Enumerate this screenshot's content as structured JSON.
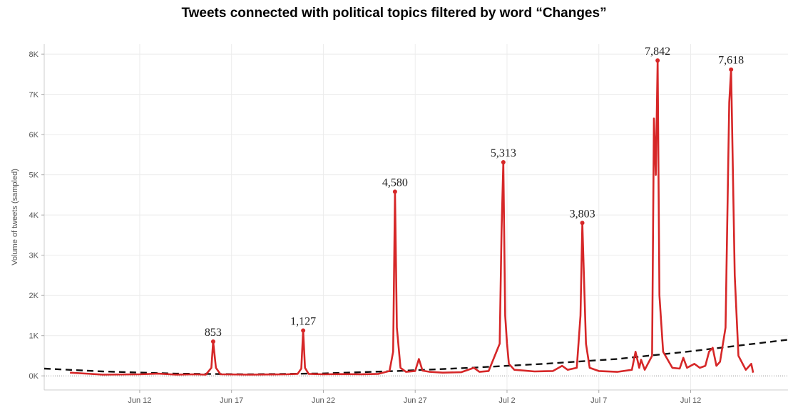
{
  "chart_data": {
    "type": "line",
    "title": "Tweets connected with political topics filtered by word “Changes”",
    "ylabel": "Volume of tweets (sampled)",
    "xlabel": "",
    "ylim": [
      -350,
      8250
    ],
    "yticks": [
      {
        "v": 0,
        "label": "0K"
      },
      {
        "v": 1000,
        "label": "1K"
      },
      {
        "v": 2000,
        "label": "2K"
      },
      {
        "v": 3000,
        "label": "3K"
      },
      {
        "v": 4000,
        "label": "4K"
      },
      {
        "v": 5000,
        "label": "5K"
      },
      {
        "v": 6000,
        "label": "6K"
      },
      {
        "v": 7000,
        "label": "7K"
      },
      {
        "v": 8000,
        "label": "8K"
      }
    ],
    "xrange_days": [
      -3.2,
      37.3
    ],
    "xticks": [
      {
        "day": 2,
        "label": "Jun 12"
      },
      {
        "day": 7,
        "label": "Jun 17"
      },
      {
        "day": 12,
        "label": "Jun 22"
      },
      {
        "day": 17,
        "label": "Jun 27"
      },
      {
        "day": 22,
        "label": "Jul 2"
      },
      {
        "day": 27,
        "label": "Jul 7"
      },
      {
        "day": 32,
        "label": "Jul 12"
      }
    ],
    "grid": true,
    "series": [
      {
        "color": "#d62728",
        "points": [
          [
            -1.8,
            80
          ],
          [
            0,
            30
          ],
          [
            2,
            40
          ],
          [
            3,
            55
          ],
          [
            4,
            30
          ],
          [
            5,
            40
          ],
          [
            5.6,
            30
          ],
          [
            5.9,
            200
          ],
          [
            6.0,
            853
          ],
          [
            6.15,
            200
          ],
          [
            6.4,
            40
          ],
          [
            8,
            30
          ],
          [
            9,
            35
          ],
          [
            10,
            40
          ],
          [
            10.6,
            50
          ],
          [
            10.8,
            180
          ],
          [
            10.9,
            1127
          ],
          [
            11.0,
            200
          ],
          [
            11.2,
            50
          ],
          [
            12,
            40
          ],
          [
            13,
            45
          ],
          [
            14,
            40
          ],
          [
            15,
            50
          ],
          [
            15.6,
            120
          ],
          [
            15.8,
            600
          ],
          [
            15.9,
            4580
          ],
          [
            16.0,
            1200
          ],
          [
            16.2,
            200
          ],
          [
            16.5,
            100
          ],
          [
            17,
            120
          ],
          [
            17.2,
            420
          ],
          [
            17.4,
            130
          ],
          [
            17.8,
            100
          ],
          [
            18.5,
            80
          ],
          [
            19.5,
            90
          ],
          [
            20.2,
            200
          ],
          [
            20.5,
            100
          ],
          [
            21,
            120
          ],
          [
            21.6,
            800
          ],
          [
            21.7,
            3600
          ],
          [
            21.8,
            5313
          ],
          [
            21.9,
            1500
          ],
          [
            22.0,
            800
          ],
          [
            22.1,
            300
          ],
          [
            22.4,
            150
          ],
          [
            23,
            130
          ],
          [
            23.5,
            110
          ],
          [
            24.5,
            120
          ],
          [
            25,
            250
          ],
          [
            25.3,
            150
          ],
          [
            25.8,
            200
          ],
          [
            26.0,
            1500
          ],
          [
            26.1,
            3803
          ],
          [
            26.3,
            800
          ],
          [
            26.5,
            200
          ],
          [
            27,
            120
          ],
          [
            28,
            100
          ],
          [
            28.8,
            150
          ],
          [
            29.0,
            600
          ],
          [
            29.2,
            200
          ],
          [
            29.3,
            400
          ],
          [
            29.5,
            150
          ],
          [
            29.9,
            500
          ],
          [
            30.0,
            6400
          ],
          [
            30.1,
            5000
          ],
          [
            30.2,
            7842
          ],
          [
            30.3,
            2000
          ],
          [
            30.5,
            600
          ],
          [
            31,
            200
          ],
          [
            31.4,
            180
          ],
          [
            31.6,
            450
          ],
          [
            31.8,
            200
          ],
          [
            32.2,
            300
          ],
          [
            32.5,
            200
          ],
          [
            32.8,
            250
          ],
          [
            33.0,
            600
          ],
          [
            33.2,
            700
          ],
          [
            33.4,
            250
          ],
          [
            33.6,
            350
          ],
          [
            33.9,
            1200
          ],
          [
            34.1,
            6800
          ],
          [
            34.2,
            7618
          ],
          [
            34.4,
            2500
          ],
          [
            34.6,
            500
          ],
          [
            35,
            150
          ],
          [
            35.3,
            300
          ],
          [
            35.4,
            80
          ]
        ]
      }
    ],
    "trend": {
      "points": [
        [
          -3.2,
          180
        ],
        [
          0,
          110
        ],
        [
          4,
          55
        ],
        [
          8,
          40
        ],
        [
          12,
          60
        ],
        [
          16,
          120
        ],
        [
          20,
          200
        ],
        [
          24,
          300
        ],
        [
          28,
          420
        ],
        [
          32,
          610
        ],
        [
          37.3,
          900
        ]
      ]
    },
    "labels": [
      {
        "day": 6.0,
        "value": 853,
        "text": "853"
      },
      {
        "day": 10.9,
        "value": 1127,
        "text": "1,127"
      },
      {
        "day": 15.9,
        "value": 4580,
        "text": "4,580"
      },
      {
        "day": 21.8,
        "value": 5313,
        "text": "5,313"
      },
      {
        "day": 26.1,
        "value": 3803,
        "text": "3,803"
      },
      {
        "day": 30.2,
        "value": 7842,
        "text": "7,842"
      },
      {
        "day": 34.2,
        "value": 7618,
        "text": "7,618"
      }
    ]
  }
}
